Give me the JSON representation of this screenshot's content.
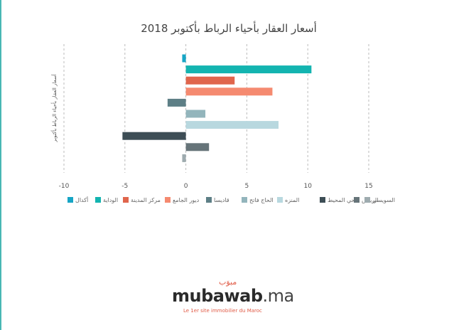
{
  "chart_data": {
    "type": "bar",
    "orientation": "horizontal",
    "title": "أسعار العقار بأحياء الرباط بأكتوبر 2018",
    "ylabel": "أسعار العقار بأحياء الرباط بأكتوبر",
    "xlabel": "",
    "xlim": [
      -10,
      15
    ],
    "x_ticks": [
      "-10",
      "-5",
      "0",
      "5",
      "10",
      "15"
    ],
    "grid": "vertical-dashed",
    "legend_position": "bottom",
    "series": [
      {
        "name": "أكدال",
        "value": -0.3,
        "color": "#17a5c5"
      },
      {
        "name": "الوداية",
        "value": 10.3,
        "color": "#13b4b0"
      },
      {
        "name": "مركز المدينة",
        "value": 4.0,
        "color": "#e0654c"
      },
      {
        "name": "ديور الجامع",
        "value": 7.1,
        "color": "#f58a70"
      },
      {
        "name": "قاديسا",
        "value": -1.5,
        "color": "#5d7f86"
      },
      {
        "name": "الحاج فاتح",
        "value": 1.6,
        "color": "#93b5bc"
      },
      {
        "name": "المنزه",
        "value": 7.6,
        "color": "#b8d8df"
      },
      {
        "name": "حي المحيط",
        "value": -5.2,
        "color": "#3d4d55"
      },
      {
        "name": "الرياض",
        "value": 1.9,
        "color": "#667479"
      },
      {
        "name": "السويسي",
        "value": -0.3,
        "color": "#9eabaf"
      }
    ]
  },
  "logo": {
    "word_main": "mubawab",
    "word_tld": ".ma",
    "arabic": "مبوَب",
    "tagline": "Le 1er site immobilier du Maroc"
  }
}
